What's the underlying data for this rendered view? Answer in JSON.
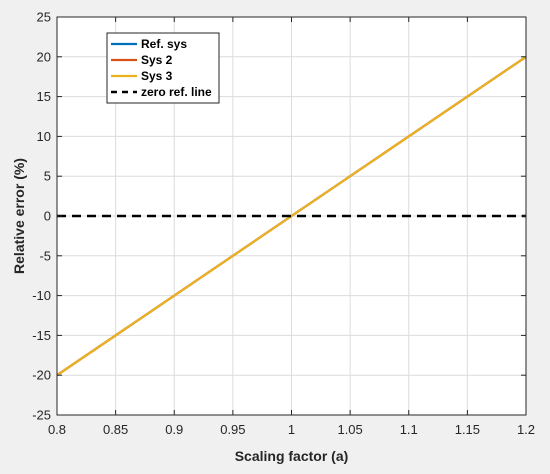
{
  "chart_data": {
    "type": "line",
    "title": "",
    "xlabel": "Scaling factor (a)",
    "ylabel": "Relative error (%)",
    "xlim": [
      0.8,
      1.2
    ],
    "ylim": [
      -25,
      25
    ],
    "xticks": [
      "0.8",
      "0.85",
      "0.9",
      "0.95",
      "1",
      "1.05",
      "1.1",
      "1.15",
      "1.2"
    ],
    "yticks": [
      "-25",
      "-20",
      "-15",
      "-10",
      "-5",
      "0",
      "5",
      "10",
      "15",
      "20",
      "25"
    ],
    "grid": true,
    "legend_position": "top-left",
    "series": [
      {
        "name": "Ref. sys",
        "color": "#0072BD",
        "dash": "solid",
        "x": [
          0.8,
          1.2
        ],
        "y": [
          -20,
          20
        ]
      },
      {
        "name": "Sys 2",
        "color": "#D95319",
        "dash": "solid",
        "x": [
          0.8,
          1.2
        ],
        "y": [
          -20,
          20
        ]
      },
      {
        "name": "Sys 3",
        "color": "#EDB120",
        "dash": "solid",
        "x": [
          0.8,
          1.2
        ],
        "y": [
          -20,
          20
        ]
      },
      {
        "name": "zero ref. line",
        "color": "#000000",
        "dash": "dashed",
        "x": [
          0.8,
          1.2
        ],
        "y": [
          0,
          0
        ]
      }
    ]
  }
}
